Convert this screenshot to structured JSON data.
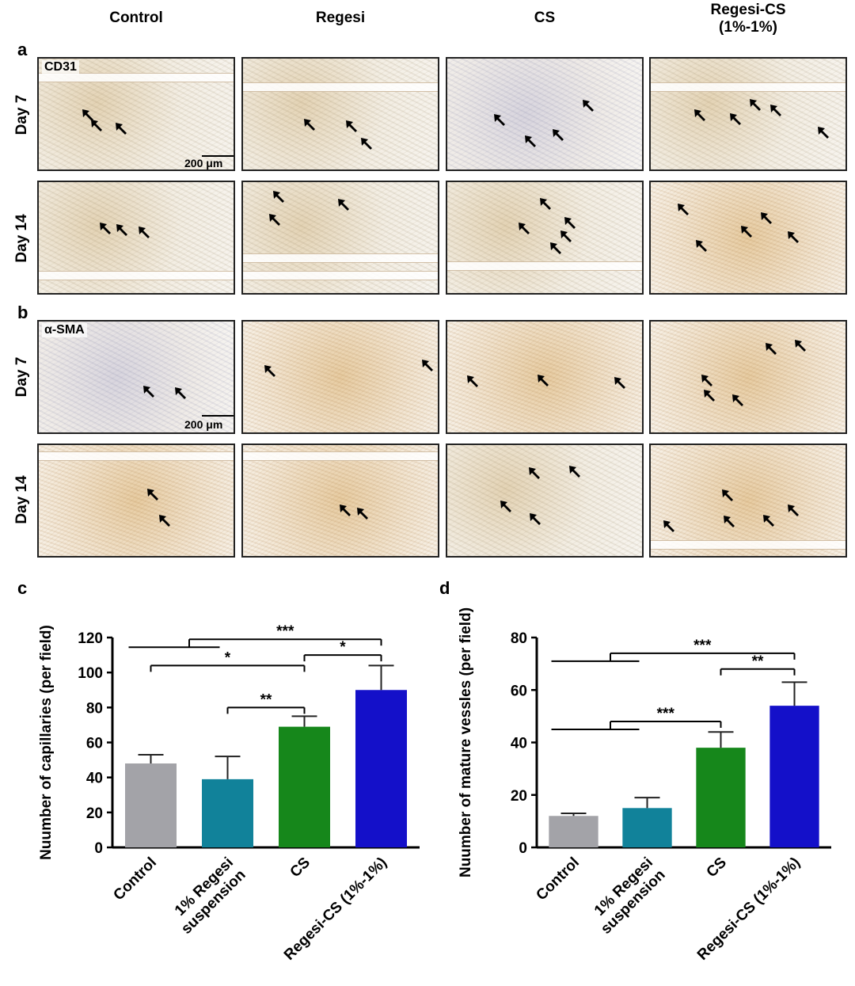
{
  "figure": {
    "panels": {
      "a": "a",
      "b": "b",
      "c": "c",
      "d": "d"
    },
    "columns": [
      "Control",
      "Regesi",
      "CS",
      "Regesi-CS\n(1%-1%)"
    ],
    "rows_a": [
      "Day 7",
      "Day 14"
    ],
    "rows_b": [
      "Day 7",
      "Day 14"
    ],
    "marker_a": "CD31",
    "marker_b": "α-SMA",
    "scale_bar": "200 μm",
    "arrow_icon": "arrow-icon"
  },
  "chart_data": [
    {
      "type": "bar",
      "panel": "c",
      "categories": [
        "Control",
        "1% Regesi\nsuspension",
        "CS",
        "Regesi-CS (1%-1%)"
      ],
      "values": [
        48,
        39,
        69,
        90
      ],
      "errors": [
        5,
        13,
        6,
        14
      ],
      "colors": [
        "#a3a3a8",
        "#11829a",
        "#16871b",
        "#1410c9"
      ],
      "ylabel": "Nuumber of capillaries (per field)",
      "ylim": [
        0,
        120
      ],
      "yticks": [
        0,
        20,
        40,
        60,
        80,
        100,
        120
      ],
      "significance": [
        {
          "from": 0,
          "to": 2,
          "label": "*",
          "level": 104
        },
        {
          "from": 1,
          "to": 2,
          "label": "**",
          "level": 80
        },
        {
          "from": 2,
          "to": 3,
          "label": "*",
          "level": 110
        },
        {
          "from": 0.5,
          "to": 3,
          "label": "***",
          "level": 119,
          "note": "group of Control and 1% Regesi vs Regesi-CS"
        }
      ]
    },
    {
      "type": "bar",
      "panel": "d",
      "categories": [
        "Control",
        "1% Regesi\nsuspension",
        "CS",
        "Regesi-CS (1%-1%)"
      ],
      "values": [
        12,
        15,
        38,
        54
      ],
      "errors": [
        1,
        4,
        6,
        9
      ],
      "colors": [
        "#a3a3a8",
        "#11829a",
        "#16871b",
        "#1410c9"
      ],
      "ylabel": "Nuumber of mature vessles (per field)",
      "ylim": [
        0,
        80
      ],
      "yticks": [
        0,
        20,
        40,
        60,
        80
      ],
      "significance": [
        {
          "from": 0.5,
          "to": 2,
          "label": "***",
          "level": 48,
          "note": "group of Control and 1% Regesi vs CS"
        },
        {
          "from": 2,
          "to": 3,
          "label": "**",
          "level": 68
        },
        {
          "from": 0.5,
          "to": 3,
          "label": "***",
          "level": 74
        }
      ]
    }
  ]
}
